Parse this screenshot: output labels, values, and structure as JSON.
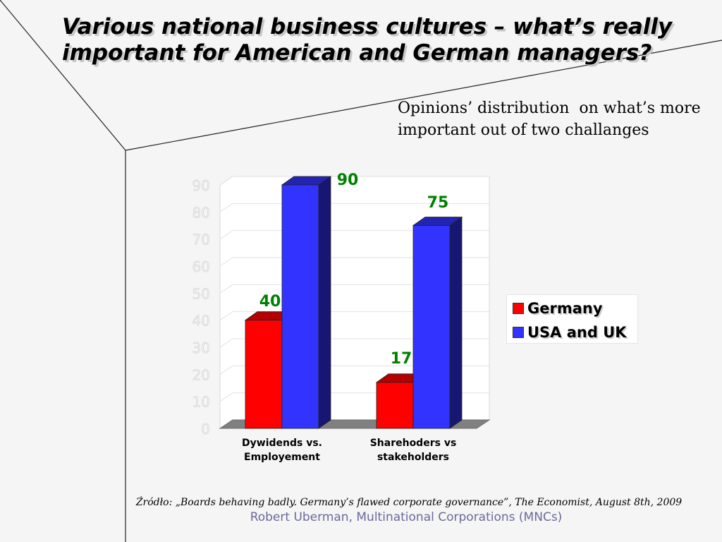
{
  "slide": {
    "title": "Various national business cultures – what’s really important for American and German managers?",
    "subtitle": "Opinions’ distribution  on what’s more important out of two challanges",
    "source": "Źródło: „Boards behaving badly. Germany’s flawed corporate governance”, The Economist,  August 8th, 2009",
    "footer": "Robert Uberman, Multinational Corporations (MNCs)"
  },
  "chart_data": {
    "type": "bar",
    "title": "",
    "xlabel": "",
    "ylabel": "",
    "ylim": [
      0,
      90
    ],
    "yticks": [
      "0",
      "10",
      "20",
      "30",
      "40",
      "50",
      "60",
      "70",
      "80",
      "90"
    ],
    "categories": [
      "Dywidends vs.\nEmployement",
      "Sharehoders vs\nstakeholders"
    ],
    "series": [
      {
        "name": "Germany",
        "values": [
          40,
          17
        ],
        "color": "#ff0000"
      },
      {
        "name": "USA and UK",
        "values": [
          90,
          75
        ],
        "color": "#3333ff"
      }
    ],
    "data_labels": [
      "40",
      "90",
      "17",
      "75"
    ],
    "data_label_color": "#008000",
    "grid": true,
    "legend": "right",
    "style": "3d-column"
  }
}
